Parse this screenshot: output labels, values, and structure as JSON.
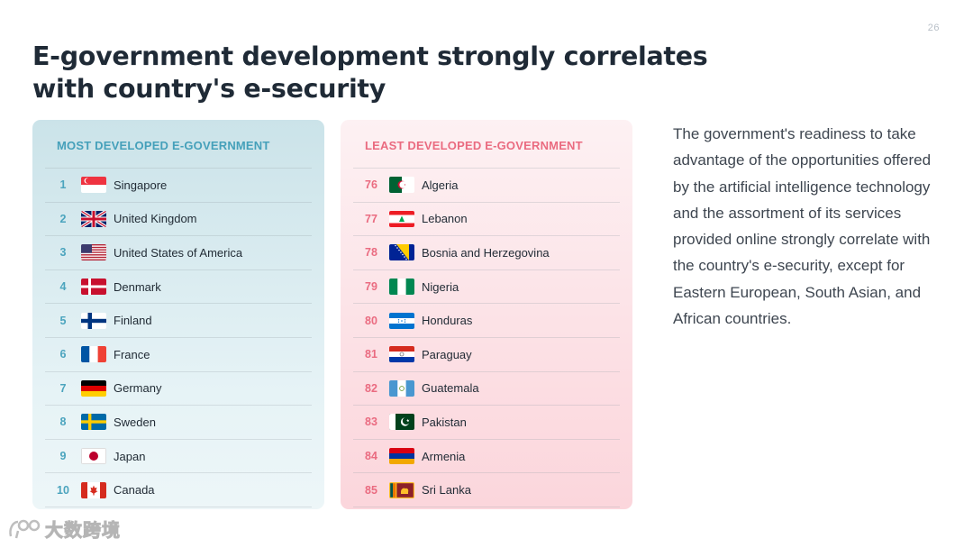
{
  "page_number": "26",
  "title": "E-government development strongly correlates with country's e-security",
  "most_developed": {
    "heading": "MOST DEVELOPED E-GOVERNMENT",
    "rows": [
      {
        "rank": "1",
        "country": "Singapore",
        "flag": "singapore-flag"
      },
      {
        "rank": "2",
        "country": "United Kingdom",
        "flag": "united-kingdom-flag"
      },
      {
        "rank": "3",
        "country": "United States of America",
        "flag": "usa-flag"
      },
      {
        "rank": "4",
        "country": "Denmark",
        "flag": "denmark-flag"
      },
      {
        "rank": "5",
        "country": "Finland",
        "flag": "finland-flag"
      },
      {
        "rank": "6",
        "country": "France",
        "flag": "france-flag"
      },
      {
        "rank": "7",
        "country": "Germany",
        "flag": "germany-flag"
      },
      {
        "rank": "8",
        "country": "Sweden",
        "flag": "sweden-flag"
      },
      {
        "rank": "9",
        "country": "Japan",
        "flag": "japan-flag"
      },
      {
        "rank": "10",
        "country": "Canada",
        "flag": "canada-flag"
      }
    ]
  },
  "least_developed": {
    "heading": "LEAST DEVELOPED E-GOVERNMENT",
    "rows": [
      {
        "rank": "76",
        "country": "Algeria",
        "flag": "algeria-flag"
      },
      {
        "rank": "77",
        "country": "Lebanon",
        "flag": "lebanon-flag"
      },
      {
        "rank": "78",
        "country": "Bosnia and Herzegovina",
        "flag": "bosnia-flag"
      },
      {
        "rank": "79",
        "country": "Nigeria",
        "flag": "nigeria-flag"
      },
      {
        "rank": "80",
        "country": "Honduras",
        "flag": "honduras-flag"
      },
      {
        "rank": "81",
        "country": "Paraguay",
        "flag": "paraguay-flag"
      },
      {
        "rank": "82",
        "country": "Guatemala",
        "flag": "guatemala-flag"
      },
      {
        "rank": "83",
        "country": "Pakistan",
        "flag": "pakistan-flag"
      },
      {
        "rank": "84",
        "country": "Armenia",
        "flag": "armenia-flag"
      },
      {
        "rank": "85",
        "country": "Sri Lanka",
        "flag": "sri-lanka-flag"
      }
    ]
  },
  "description": "The government's readiness to take advantage of the opportunities offered by the artificial intelligence technology and the assortment of its services provided online strongly correlate with the country's e-security, except for Eastern European, South Asian, and African countries.",
  "watermark": {
    "text": "大数跨境",
    "icon": "watermark-logo-icon"
  },
  "colors": {
    "accent_teal": "#45a0ba",
    "accent_pink": "#ea6b80",
    "title": "#1f2a36"
  }
}
